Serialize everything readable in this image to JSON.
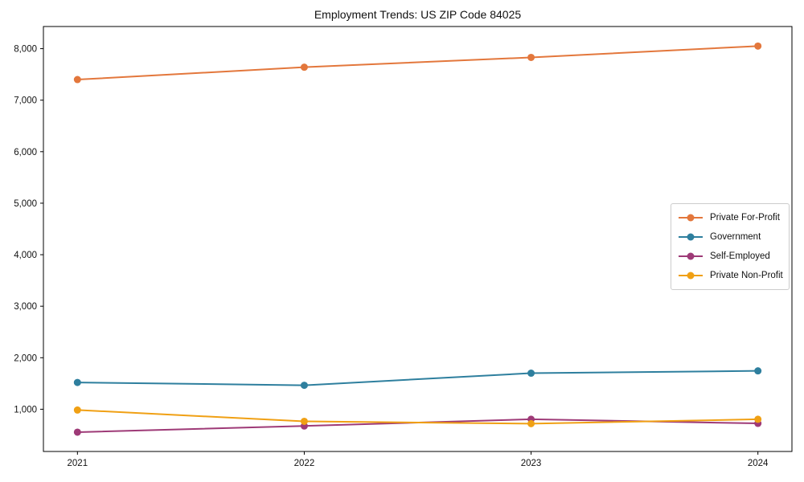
{
  "chart_data": {
    "type": "line",
    "title": "Employment Trends: US ZIP Code 84025",
    "x": [
      2021,
      2022,
      2023,
      2024
    ],
    "xtick_labels": [
      "2021",
      "2022",
      "2023",
      "2024"
    ],
    "series": [
      {
        "name": "Private For-Profit",
        "color": "#E3773C",
        "values": [
          7400,
          7640,
          7830,
          8050
        ]
      },
      {
        "name": "Government",
        "color": "#2E7F9E",
        "values": [
          1520,
          1465,
          1700,
          1745
        ]
      },
      {
        "name": "Self-Employed",
        "color": "#9E3A77",
        "values": [
          555,
          675,
          805,
          725
        ]
      },
      {
        "name": "Private Non-Profit",
        "color": "#F0A014",
        "values": [
          985,
          765,
          720,
          805
        ]
      }
    ],
    "yticks": [
      1000,
      2000,
      3000,
      4000,
      5000,
      6000,
      7000,
      8000
    ],
    "ytick_labels": [
      "1,000",
      "2,000",
      "3,000",
      "4,000",
      "5,000",
      "6,000",
      "7,000",
      "8,000"
    ],
    "xlabel": "",
    "ylabel": "",
    "xlim": [
      2020.85,
      2024.15
    ],
    "ylim": [
      180,
      8430
    ],
    "grid": false,
    "legend_position": "right",
    "frame_color": "#000000",
    "marker": "circle",
    "marker_radius": 4.5,
    "line_width": 2
  }
}
